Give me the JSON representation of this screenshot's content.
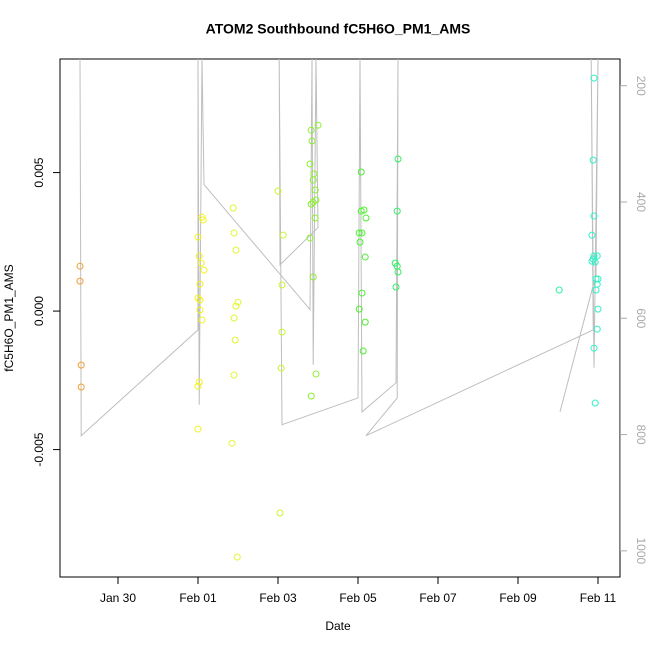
{
  "chart_data": {
    "type": "scatter",
    "title": "ATOM2 Southbound fC5H6O_PM1_AMS",
    "xlabel": "Date",
    "ylabel": "fC5H6O_PM1_AMS",
    "xlim": [
      28.55,
      42.55
    ],
    "xticks": [
      {
        "value": 30,
        "label": "Jan 30"
      },
      {
        "value": 32,
        "label": "Feb 01"
      },
      {
        "value": 34,
        "label": "Feb 03"
      },
      {
        "value": 36,
        "label": "Feb 05"
      },
      {
        "value": 38,
        "label": "Feb 07"
      },
      {
        "value": 40,
        "label": "Feb 09"
      },
      {
        "value": 42,
        "label": "Feb 11"
      }
    ],
    "ylim": [
      -0.0096,
      0.0091
    ],
    "yticks": [
      -0.005,
      {
        "value": 0,
        "label": "0.000"
      },
      0.005
    ],
    "y2lim": [
      1045,
      154
    ],
    "y2ticks": [
      200,
      400,
      600,
      800,
      1000
    ],
    "series": [
      {
        "axis": "y2",
        "color": "#bebebe",
        "x": [
          29.05,
          29.08,
          32.0,
          32.0,
          32.03,
          32.1,
          32.15,
          34.8,
          34.85,
          34.88,
          34.95,
          35.0,
          34.05,
          34.03,
          34.1,
          36.0,
          36.05,
          36.1,
          36.95,
          37.0,
          36.98,
          36.2,
          41.88,
          41.83,
          41.9,
          42.0,
          41.95,
          41.05
        ],
        "values": [
          154,
          802,
          620,
          154,
          749,
          154,
          370,
          585,
          154,
          680,
          154,
          444,
          508,
          154,
          783,
          737,
          154,
          761,
          711,
          154,
          737,
          802,
          620,
          154,
          685,
          154,
          525,
          761
        ]
      },
      {
        "color": "#f0a030",
        "x": [
          29.05,
          29.05,
          29.08,
          29.08
        ],
        "values": [
          0.00162,
          0.00108,
          -0.00195,
          -0.00274
        ]
      },
      {
        "color": "#f2f220",
        "x": [
          32.0,
          32.03,
          32.05,
          32.0,
          32.05,
          32.1,
          32.1,
          32.13,
          32.08,
          32.03,
          32.0,
          32.15,
          32.05,
          32.0
        ],
        "values": [
          0.00267,
          0.00199,
          0.00097,
          0.00047,
          4e-05,
          -0.00032,
          0.00339,
          0.00329,
          0.00173,
          -0.00256,
          -0.00426,
          0.00148,
          0.0004,
          -0.00271
        ]
      },
      {
        "color": "#e2f530",
        "x": [
          32.88,
          32.9,
          32.95,
          32.95,
          32.93,
          32.85,
          32.9,
          32.98,
          32.9,
          33.0
        ],
        "values": [
          0.00372,
          0.00282,
          0.0022,
          0.00018,
          -0.00105,
          -0.00477,
          -0.00231,
          -0.00888,
          -0.00025,
          0.00032
        ]
      },
      {
        "color": "#c8f530",
        "x": [
          34.0,
          34.13,
          34.1,
          34.1,
          34.08,
          34.05
        ],
        "values": [
          0.00433,
          0.00274,
          0.00094,
          -0.00076,
          -0.00206,
          -0.00729
        ]
      },
      {
        "color": "#8cf030",
        "x": [
          34.83,
          34.85,
          35.0,
          34.8,
          34.88,
          34.93,
          34.88,
          34.95,
          34.83,
          34.93,
          34.8,
          34.88,
          34.95,
          34.83,
          34.9
        ],
        "values": [
          0.00653,
          0.00614,
          0.00671,
          0.00531,
          0.00473,
          0.00437,
          0.00393,
          0.00401,
          0.00386,
          0.00336,
          0.00264,
          0.00123,
          -0.00227,
          -0.00307,
          0.00495
        ]
      },
      {
        "color": "#4cf030",
        "x": [
          36.08,
          36.08,
          36.15,
          36.03,
          36.1,
          36.05,
          36.2,
          36.03,
          36.1,
          36.18,
          36.13,
          36.18
        ],
        "values": [
          0.00502,
          0.00361,
          0.00365,
          0.00282,
          0.00282,
          0.00249,
          0.00336,
          7e-05,
          0.00065,
          -0.0004,
          -0.00144,
          0.00195
        ]
      },
      {
        "color": "#30f060",
        "x": [
          37.0,
          36.98,
          36.93,
          36.98,
          37.0,
          36.95
        ],
        "values": [
          0.00549,
          0.00361,
          0.00173,
          0.00162,
          0.00141,
          0.00087
        ]
      },
      {
        "color": "#30f0a0",
        "x": [
          41.03
        ],
        "values": [
          0.00076
        ]
      },
      {
        "color": "#30f0c8",
        "x": [
          41.9,
          41.88,
          41.9,
          41.85,
          41.9,
          41.88,
          41.98,
          41.93,
          41.95,
          42.0,
          41.98,
          41.95,
          42.0,
          41.98,
          41.9,
          41.93,
          41.85
        ],
        "values": [
          0.00841,
          0.00545,
          0.00343,
          0.00274,
          0.00199,
          0.00188,
          0.00199,
          0.00177,
          0.00116,
          0.00116,
          0.00097,
          0.00076,
          7e-05,
          -0.00065,
          -0.00134,
          -0.00332,
          0.0018
        ]
      }
    ]
  }
}
